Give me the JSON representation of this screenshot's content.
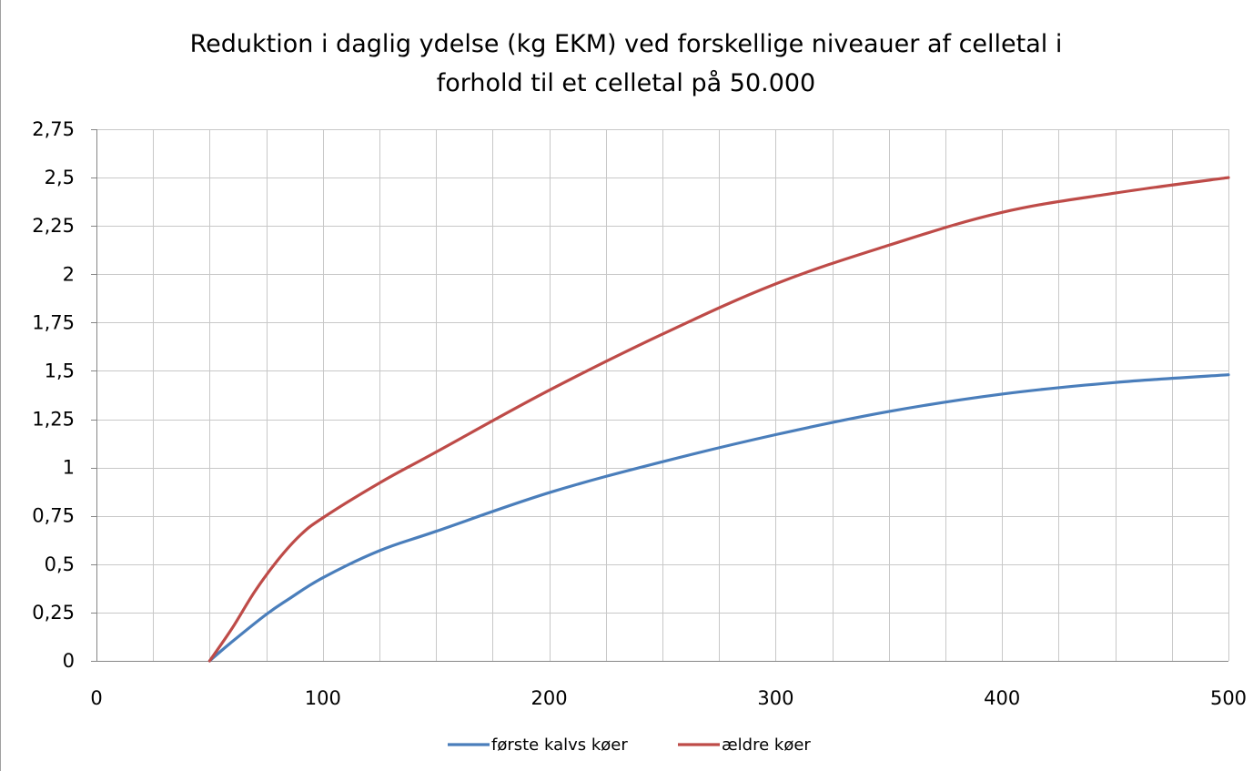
{
  "chart_data": {
    "type": "line",
    "title_lines": [
      "Reduktion i daglig ydelse (kg EKM) ved forskellige niveauer af celletal i",
      "forhold til et celletal på 50.000"
    ],
    "xlabel": "",
    "ylabel": "",
    "xlim": [
      0,
      500
    ],
    "ylim": [
      0,
      2.75
    ],
    "x_ticks": [
      0,
      100,
      200,
      300,
      400,
      500
    ],
    "x_tick_labels": [
      "0",
      "100",
      "200",
      "300",
      "400",
      "500"
    ],
    "y_ticks": [
      0,
      0.25,
      0.5,
      0.75,
      1,
      1.25,
      1.5,
      1.75,
      2,
      2.25,
      2.5,
      2.75
    ],
    "y_tick_labels": [
      "0",
      "0,25",
      "0,5",
      "0,75",
      "1",
      "1,25",
      "1,5",
      "1,75",
      "2",
      "2,25",
      "2,5",
      "2,75"
    ],
    "x_minor_grid_step": 25,
    "grid": true,
    "legend_position": "bottom",
    "series": [
      {
        "name": "første kalvs køer",
        "color": "#4a7ebb",
        "x": [
          50,
          60,
          75,
          85,
          100,
          125,
          150,
          200,
          250,
          300,
          350,
          400,
          450,
          500
        ],
        "y": [
          0,
          0.1,
          0.24,
          0.32,
          0.43,
          0.57,
          0.67,
          0.87,
          1.03,
          1.17,
          1.29,
          1.38,
          1.44,
          1.48
        ]
      },
      {
        "name": "ældre køer",
        "color": "#be4b48",
        "x": [
          50,
          60,
          70,
          80,
          90,
          100,
          125,
          150,
          200,
          250,
          300,
          350,
          400,
          450,
          500
        ],
        "y": [
          0,
          0.17,
          0.36,
          0.52,
          0.65,
          0.74,
          0.92,
          1.08,
          1.4,
          1.69,
          1.95,
          2.15,
          2.32,
          2.42,
          2.5
        ]
      }
    ]
  }
}
